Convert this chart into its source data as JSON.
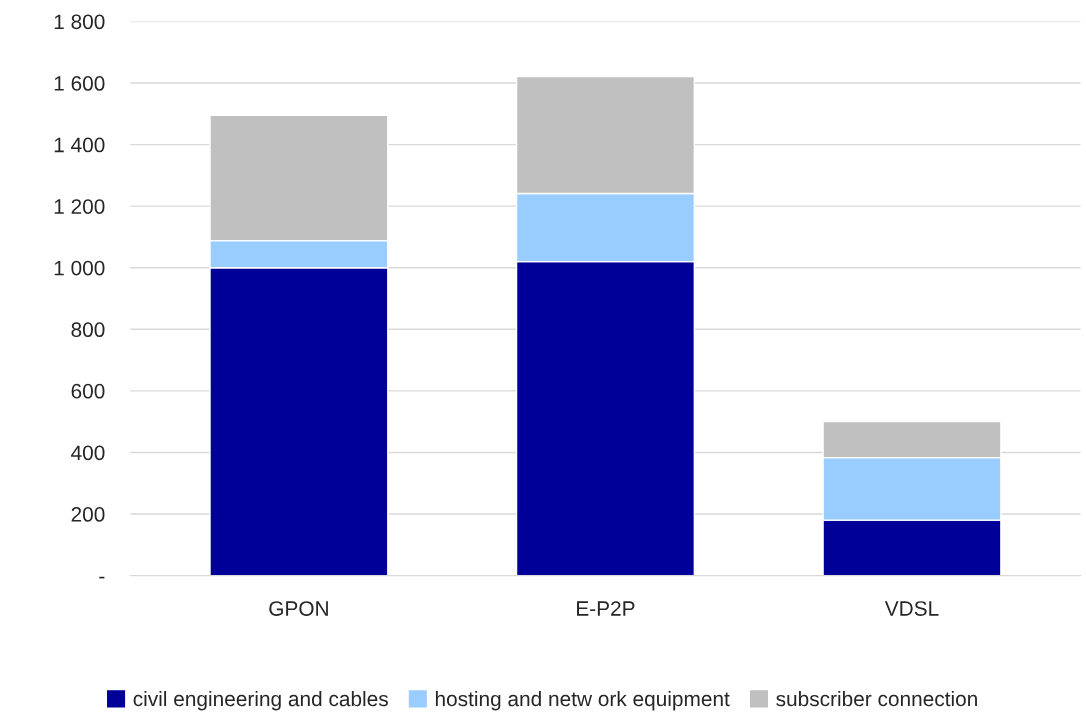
{
  "chart_data": {
    "type": "bar",
    "stacked": true,
    "categories": [
      "GPON",
      "E-P2P",
      "VDSL"
    ],
    "series": [
      {
        "name": "civil engineering and cables",
        "color": "#000099",
        "values": [
          1000,
          1020,
          180
        ]
      },
      {
        "name": "hosting and netw ork equipment",
        "color": "#99ccff",
        "values": [
          88,
          221,
          203
        ]
      },
      {
        "name": "subscriber connection",
        "color": "#c0c0c0",
        "values": [
          407,
          380,
          117
        ]
      }
    ],
    "ylim": [
      0,
      1800
    ],
    "yticks": [
      {
        "value": 0,
        "label": "-"
      },
      200,
      400,
      600,
      800,
      {
        "value": 1000,
        "label": "1 000"
      },
      {
        "value": 1200,
        "label": "1 200"
      },
      {
        "value": 1400,
        "label": "1 400"
      },
      {
        "value": 1600,
        "label": "1 600"
      },
      {
        "value": 1800,
        "label": "1 800"
      }
    ],
    "grid": "y",
    "legend": "bottom"
  }
}
